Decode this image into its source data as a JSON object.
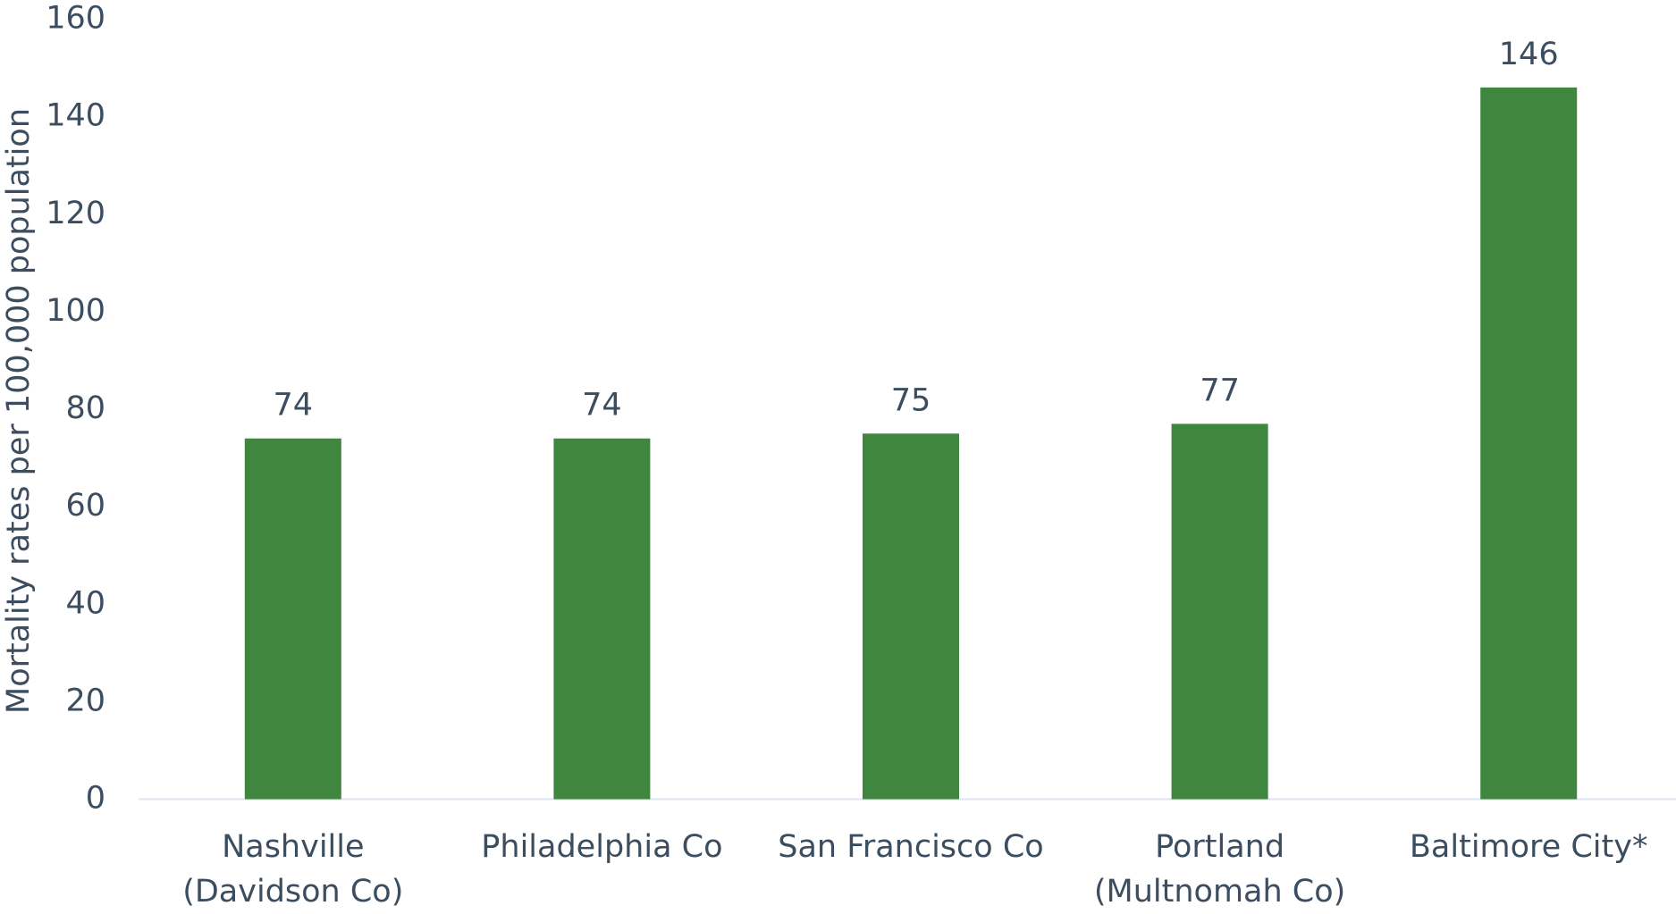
{
  "chart_data": {
    "type": "bar",
    "y_axis_label": "Mortality rates per 100,000 population",
    "categories": [
      "Nashville (Davidson Co)",
      "Philadelphia Co",
      "San Francisco Co",
      "Portland (Multnomah Co)",
      "Baltimore City*"
    ],
    "values": [
      74,
      74,
      75,
      77,
      146
    ],
    "color": "#3f873e",
    "ylim": [
      0,
      160
    ],
    "yticks": [
      0,
      20,
      40,
      60,
      80,
      100,
      120,
      140,
      160
    ],
    "grid": false
  }
}
